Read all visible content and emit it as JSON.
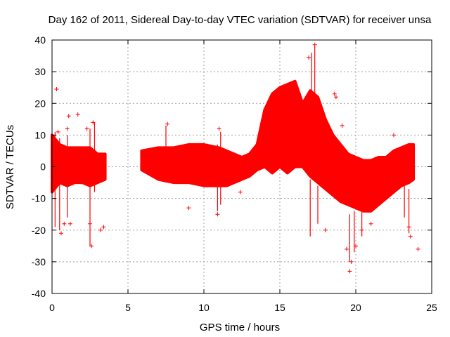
{
  "chart_data": {
    "type": "scatter",
    "title": "Day 162 of 2011, Sidereal Day-to-day VTEC variation (SDTVAR) for receiver unsa",
    "xlabel": "GPS time / hours",
    "ylabel": "SDTVAR / TECUs",
    "xlim": [
      0,
      25
    ],
    "ylim": [
      -40,
      40
    ],
    "xticks": [
      0,
      5,
      10,
      15,
      20,
      25
    ],
    "yticks": [
      -40,
      -30,
      -20,
      -10,
      0,
      10,
      20,
      30,
      40
    ],
    "grid": true,
    "marker": "+",
    "color": "#ff0000",
    "band_series": {
      "name": "SDTVAR dense band (approx. lower/upper envelope)",
      "x": [
        0.0,
        0.5,
        1.0,
        1.5,
        2.0,
        2.5,
        3.0,
        3.5,
        5.9,
        7.0,
        8.0,
        9.0,
        10.0,
        11.0,
        11.5,
        12.5,
        13.0,
        13.5,
        14.0,
        14.5,
        15.0,
        15.5,
        16.0,
        16.5,
        17.0,
        17.5,
        18.0,
        18.5,
        19.0,
        19.5,
        20.0,
        20.5,
        21.0,
        21.5,
        22.0,
        22.5,
        23.0,
        23.5,
        23.8
      ],
      "lower": [
        -8,
        -5,
        -6,
        -5,
        -5,
        -6,
        -5,
        -4,
        -1,
        -4,
        -5,
        -5,
        -6,
        -6,
        -6,
        -4,
        -3,
        -1,
        0,
        -2,
        0,
        -2,
        0,
        0,
        -3,
        -5,
        -7,
        -9,
        -11,
        -12,
        -13,
        -14,
        -14,
        -12,
        -10,
        -8,
        -6,
        -5,
        -4
      ],
      "upper": [
        10,
        7,
        6,
        6,
        6,
        6,
        4,
        4,
        5,
        6,
        6,
        7,
        7,
        6,
        5,
        3,
        4,
        7,
        18,
        23,
        25,
        26,
        27,
        20,
        24,
        22,
        15,
        10,
        7,
        4,
        3,
        2,
        2,
        3,
        3,
        5,
        6,
        7,
        7
      ]
    },
    "outliers": [
      {
        "x": 0.3,
        "y": 24.5
      },
      {
        "x": 0.4,
        "y": 11
      },
      {
        "x": 0.6,
        "y": -21
      },
      {
        "x": 0.8,
        "y": -18
      },
      {
        "x": 1.0,
        "y": 12
      },
      {
        "x": 1.1,
        "y": 16
      },
      {
        "x": 1.2,
        "y": -18
      },
      {
        "x": 1.7,
        "y": 16.5
      },
      {
        "x": 2.3,
        "y": 12
      },
      {
        "x": 2.5,
        "y": -18
      },
      {
        "x": 2.6,
        "y": -25
      },
      {
        "x": 2.7,
        "y": 14
      },
      {
        "x": 3.2,
        "y": -20
      },
      {
        "x": 3.4,
        "y": -19
      },
      {
        "x": 7.6,
        "y": 13.5
      },
      {
        "x": 9.0,
        "y": -13
      },
      {
        "x": 10.9,
        "y": -15
      },
      {
        "x": 11.0,
        "y": 12
      },
      {
        "x": 12.4,
        "y": -8
      },
      {
        "x": 16.9,
        "y": 34.5
      },
      {
        "x": 17.3,
        "y": 38.5
      },
      {
        "x": 18.0,
        "y": -20
      },
      {
        "x": 18.6,
        "y": 23
      },
      {
        "x": 18.7,
        "y": 22
      },
      {
        "x": 19.1,
        "y": 13
      },
      {
        "x": 19.4,
        "y": -26
      },
      {
        "x": 19.7,
        "y": -30
      },
      {
        "x": 19.6,
        "y": -33
      },
      {
        "x": 20.0,
        "y": -25
      },
      {
        "x": 20.4,
        "y": -20
      },
      {
        "x": 21.0,
        "y": -18
      },
      {
        "x": 22.5,
        "y": 10
      },
      {
        "x": 23.5,
        "y": -19
      },
      {
        "x": 23.6,
        "y": -22
      },
      {
        "x": 24.1,
        "y": -26
      }
    ],
    "spikes": [
      {
        "x": 0.2,
        "min": -19,
        "max": 11
      },
      {
        "x": 0.5,
        "min": -20,
        "max": 9
      },
      {
        "x": 1.0,
        "min": -16,
        "max": 10
      },
      {
        "x": 2.5,
        "min": -25,
        "max": 12
      },
      {
        "x": 2.8,
        "min": -8,
        "max": 14
      },
      {
        "x": 7.5,
        "min": -5,
        "max": 13
      },
      {
        "x": 10.9,
        "min": -14,
        "max": 7
      },
      {
        "x": 11.1,
        "min": -12,
        "max": 11
      },
      {
        "x": 17.1,
        "min": 8,
        "max": 36
      },
      {
        "x": 17.3,
        "min": 12,
        "max": 38
      },
      {
        "x": 17.0,
        "min": -22,
        "max": -4
      },
      {
        "x": 17.5,
        "min": -18,
        "max": -6
      },
      {
        "x": 19.6,
        "min": -30,
        "max": -15
      },
      {
        "x": 19.9,
        "min": -27,
        "max": -14
      },
      {
        "x": 20.4,
        "min": -22,
        "max": -14
      },
      {
        "x": 23.2,
        "min": -16,
        "max": -5
      },
      {
        "x": 23.5,
        "min": -21,
        "max": -7
      }
    ]
  }
}
